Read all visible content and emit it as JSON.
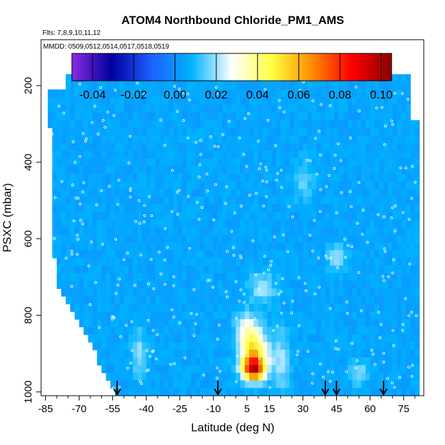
{
  "chart_data": {
    "type": "heatmap",
    "title": "ATOM4 Northbound Chloride_PM1_AMS",
    "flights_text": "Flts: 7,8,9,10,11,12",
    "dates_text": "MMDD: 0509,0512,0514,0517,0518,0519",
    "xlabel": "Latitude (deg N)",
    "ylabel": "PSXC (mbar)",
    "xlim": [
      -87,
      84
    ],
    "ylim": [
      1010,
      80
    ],
    "x_ticks": [
      -85,
      -70,
      -55,
      -40,
      -25,
      -10,
      5,
      15,
      30,
      45,
      60,
      75
    ],
    "x_tick_labels": [
      "-85",
      "-70",
      "-55",
      "-40",
      "-25",
      "-10",
      "5",
      "15",
      "30",
      "45",
      "60",
      "75"
    ],
    "x_minor_step": 5,
    "y_ticks": [
      200,
      400,
      600,
      800,
      1000
    ],
    "y_tick_labels": [
      "200",
      "400",
      "600",
      "800",
      "1000"
    ],
    "colorbar": {
      "range": [
        -0.05,
        0.105
      ],
      "ticks": [
        -0.04,
        -0.02,
        0.0,
        0.02,
        0.04,
        0.06,
        0.08,
        0.1
      ],
      "tick_labels": [
        "-0.04",
        "-0.02",
        "0.00",
        "0.02",
        "0.04",
        "0.06",
        "0.08",
        "0.10"
      ],
      "colors": [
        "#8a2be2",
        "#0000a0",
        "#1e5fff",
        "#00b4ff",
        "#ffffff",
        "#ffff40",
        "#ff8c00",
        "#ff0000",
        "#8b0000"
      ]
    },
    "background_value": 0.005,
    "hotspots": [
      {
        "lat": 8,
        "p": 940,
        "value": 0.085,
        "rlat": 5,
        "rp": 30
      },
      {
        "lat": 8,
        "p": 890,
        "value": 0.05,
        "rlat": 6,
        "rp": 50
      },
      {
        "lat": 5,
        "p": 830,
        "value": 0.025,
        "rlat": 5,
        "rp": 40
      },
      {
        "lat": -43,
        "p": 900,
        "value": 0.02,
        "rlat": 3,
        "rp": 60
      },
      {
        "lat": 20,
        "p": 920,
        "value": 0.02,
        "rlat": 4,
        "rp": 80
      },
      {
        "lat": 12,
        "p": 730,
        "value": 0.02,
        "rlat": 6,
        "rp": 40
      },
      {
        "lat": 45,
        "p": 650,
        "value": 0.018,
        "rlat": 4,
        "rp": 40
      },
      {
        "lat": 55,
        "p": 950,
        "value": 0.02,
        "rlat": 4,
        "rp": 30
      },
      {
        "lat": 30,
        "p": 450,
        "value": 0.015,
        "rlat": 5,
        "rp": 50
      }
    ],
    "arrows_lat": [
      -53,
      -8,
      40,
      45,
      66
    ]
  }
}
